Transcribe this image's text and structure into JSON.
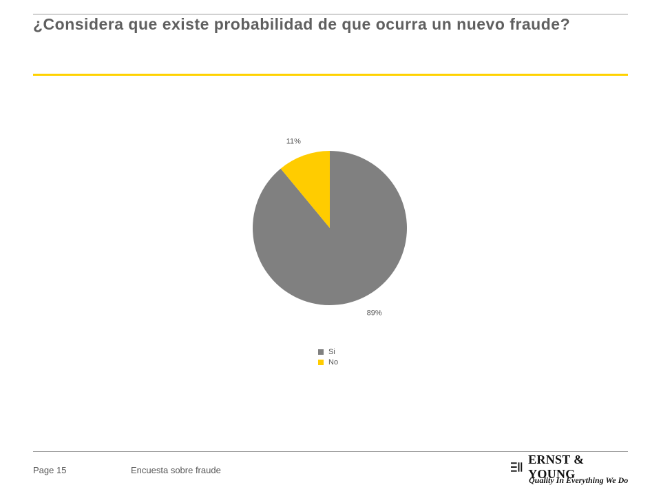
{
  "header": {
    "title": "¿Considera que existe probabilidad de que ocurra un nuevo fraude?"
  },
  "chart_data": {
    "type": "pie",
    "title": "",
    "categories": [
      "Si",
      "No"
    ],
    "values": [
      89,
      11
    ],
    "labels": [
      "89%",
      "11%"
    ],
    "colors": [
      "#808080",
      "#ffcc00"
    ],
    "legend_position": "bottom",
    "start_angle": "12 o'clock, clockwise"
  },
  "footer": {
    "page": "Page 15",
    "document": "Encuesta sobre fraude",
    "logo_name": "ERNST & YOUNG",
    "logo_tagline": "Quality In Everything We Do"
  }
}
